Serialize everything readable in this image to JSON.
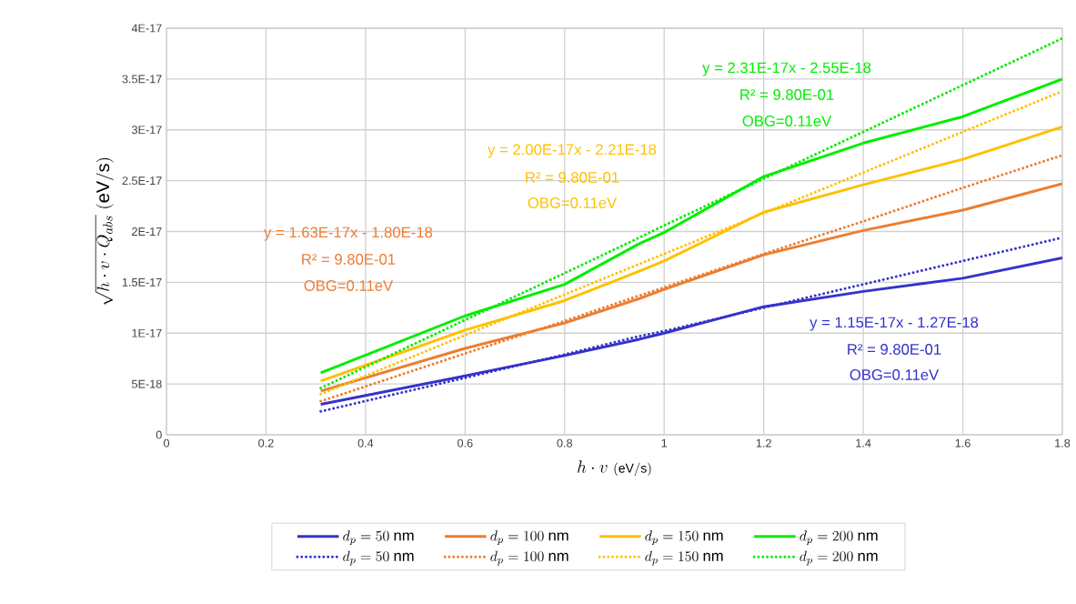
{
  "chart_data": {
    "type": "line",
    "xlabel": "h\\cdot v\\ {\\scriptstyle (\\mathrm{eV/s})}",
    "ylabel": "\\sqrt{h\\cdot v\\cdot Q_{abs}}\\ (\\mathrm{eV/s})",
    "xlim": [
      0,
      1.8
    ],
    "ylim": [
      0,
      4e-17
    ],
    "xticks": [
      0,
      0.2,
      0.4,
      0.6,
      0.8,
      1,
      1.2,
      1.4,
      1.6,
      1.8
    ],
    "yticks": [
      0,
      {
        "value": 5e-18,
        "label": "5E-18"
      },
      {
        "value": 1e-17,
        "label": "1E-17"
      },
      {
        "value": 1.5e-17,
        "label": "1.5E-17"
      },
      {
        "value": 2e-17,
        "label": "2E-17"
      },
      {
        "value": 2.5e-17,
        "label": "2.5E-17"
      },
      {
        "value": 3e-17,
        "label": "3E-17"
      },
      {
        "value": 3.5e-17,
        "label": "3.5E-17"
      },
      {
        "value": 4e-17,
        "label": "4E-17"
      }
    ],
    "grid": true,
    "legend": "bottom",
    "marker": "none",
    "x": [
      0.31,
      0.6,
      0.8,
      0.95,
      1.0,
      1.2,
      1.4,
      1.6,
      1.8
    ],
    "series": [
      {
        "name": "d_p = 50\\ \\mathrm{nm}",
        "color": "#3333cc",
        "values": [
          3e-18,
          5.8e-18,
          7.8e-18,
          9.4e-18,
          1e-17,
          1.26e-17,
          1.41e-17,
          1.54e-17,
          1.74e-17
        ]
      },
      {
        "name": "d_p = 100\\ \\mathrm{nm}",
        "color": "#ed7d31",
        "values": [
          4.3e-18,
          8.5e-18,
          1.1e-17,
          1.34e-17,
          1.43e-17,
          1.77e-17,
          2.01e-17,
          2.21e-17,
          2.47e-17
        ]
      },
      {
        "name": "d_p = 150\\ \\mathrm{nm}",
        "color": "#ffc000",
        "values": [
          5.3e-18,
          1.03e-17,
          1.32e-17,
          1.61e-17,
          1.71e-17,
          2.19e-17,
          2.46e-17,
          2.71e-17,
          3.03e-17
        ]
      },
      {
        "name": "d_p = 200\\ \\mathrm{nm}",
        "color": "#00ee00",
        "values": [
          6.1e-18,
          1.17e-17,
          1.48e-17,
          1.88e-17,
          1.99e-17,
          2.54e-17,
          2.87e-17,
          3.13e-17,
          3.5e-17
        ]
      },
      {
        "name": "d_p = 50\\ \\mathrm{nm}",
        "color": "#3333cc",
        "line_style": "dotted",
        "values": [
          2.3e-18,
          5.6e-18,
          7.9e-18,
          9.7e-18,
          1.02e-17,
          1.25e-17,
          1.48e-17,
          1.71e-17,
          1.94e-17
        ]
      },
      {
        "name": "d_p = 100\\ \\mathrm{nm}",
        "color": "#ed7d31",
        "line_style": "dotted",
        "values": [
          3.3e-18,
          8e-18,
          1.12e-17,
          1.37e-17,
          1.45e-17,
          1.78e-17,
          2.1e-17,
          2.43e-17,
          2.75e-17
        ]
      },
      {
        "name": "d_p = 150\\ \\mathrm{nm}",
        "color": "#ffc000",
        "line_style": "dotted",
        "values": [
          4e-18,
          9.8e-18,
          1.38e-17,
          1.68e-17,
          1.78e-17,
          2.18e-17,
          2.58e-17,
          2.98e-17,
          3.38e-17
        ]
      },
      {
        "name": "d_p = 200\\ \\mathrm{nm}",
        "color": "#00ee00",
        "line_style": "dotted",
        "values": [
          4.6e-18,
          1.13e-17,
          1.59e-17,
          1.94e-17,
          2.06e-17,
          2.52e-17,
          2.98e-17,
          3.44e-17,
          3.9e-17
        ]
      }
    ],
    "annotations": [
      "y = 1.63E-17x - 1.80E-18",
      "R² = 9.80E-01",
      "OBG=0.11eV",
      "y = 2.00E-17x - 2.21E-18",
      "R² = 9.80E-01",
      "OBG=0.11eV",
      "y = 2.31E-17x - 2.55E-18",
      "R² = 9.80E-01",
      "OBG=0.11eV",
      "y = 1.15E-17x - 1.27E-18",
      "R² = 9.80E-01",
      "OBG=0.11eV"
    ]
  }
}
